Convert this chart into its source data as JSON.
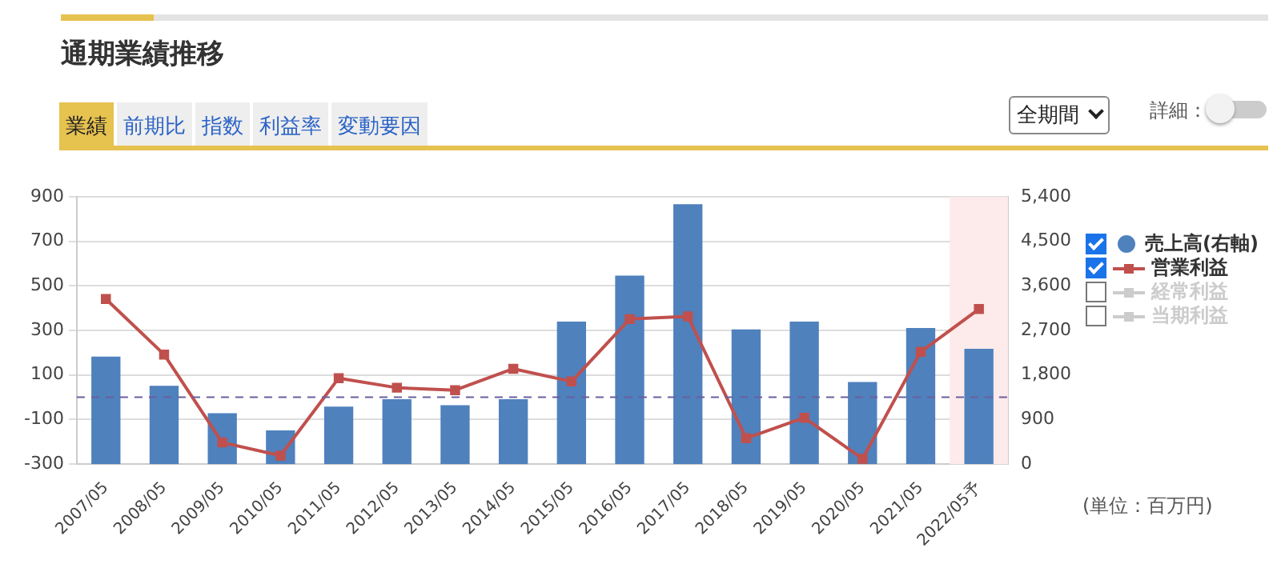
{
  "chart_data": {
    "type": "bar",
    "title": "通期業績推移",
    "categories": [
      "2007/05",
      "2008/05",
      "2009/05",
      "2010/05",
      "2011/05",
      "2012/05",
      "2013/05",
      "2014/05",
      "2015/05",
      "2016/05",
      "2017/05",
      "2018/05",
      "2019/05",
      "2020/05",
      "2021/05",
      "2022/05予"
    ],
    "series": [
      {
        "name": "売上高(右軸)",
        "axis": "y2",
        "color": "#4f81bd",
        "values": [
          2170,
          1580,
          1030,
          680,
          1160,
          1310,
          1190,
          1310,
          2880,
          3810,
          5250,
          2720,
          2880,
          1660,
          2750,
          2330
        ]
      },
      {
        "name": "営業利益",
        "type": "line",
        "axis": "y",
        "color": "#c0504d",
        "values": [
          441,
          192,
          -203,
          -262,
          86,
          43,
          32,
          128,
          71,
          351,
          363,
          -184,
          -92,
          -276,
          204,
          396
        ]
      },
      {
        "name": "経常利益",
        "type": "line",
        "axis": "y",
        "color": "#cccccc",
        "values": [
          null,
          null,
          null,
          null,
          null,
          null,
          null,
          null,
          null,
          null,
          null,
          null,
          null,
          null,
          null,
          null
        ]
      },
      {
        "name": "当期利益",
        "type": "line",
        "axis": "y",
        "color": "#cccccc",
        "values": [
          null,
          null,
          null,
          null,
          null,
          null,
          null,
          null,
          null,
          null,
          null,
          null,
          null,
          null,
          null,
          null
        ]
      }
    ],
    "ylim": [
      -300,
      900
    ],
    "yticks": [
      -300,
      -100,
      100,
      300,
      500,
      700,
      900
    ],
    "y2lim": [
      0,
      5400
    ],
    "y2ticks": [
      0,
      900,
      {
        "value": 1800,
        "label": "1,800"
      },
      {
        "value": 2700,
        "label": "2,700"
      },
      {
        "value": 3600,
        "label": "3,600"
      },
      {
        "value": 4500,
        "label": "4,500"
      },
      {
        "value": 5400,
        "label": "5,400"
      }
    ],
    "ref_lines": [
      {
        "axis": "y",
        "value": 0,
        "color": "#6a5f9e",
        "line_style": "dashed"
      }
    ],
    "bands": [
      {
        "axis": "x",
        "from": "2022/05予",
        "to": "2022/05予",
        "color": "#fdeaea"
      }
    ],
    "grid": "y",
    "legend": "right",
    "marker": "square",
    "annotations": [
      "業績",
      "前期比",
      "指数",
      "利益率",
      "変動要因",
      "全期間",
      "詳細：",
      "(単位：百万円)"
    ]
  }
}
